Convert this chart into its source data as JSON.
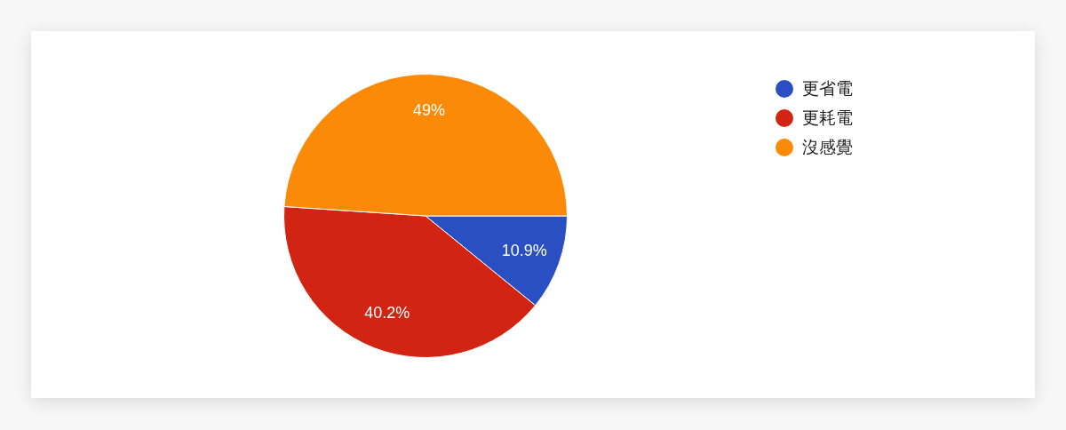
{
  "chart_data": {
    "type": "pie",
    "categories": [
      "更省電",
      "更耗電",
      "沒感覺"
    ],
    "values": [
      10.9,
      40.2,
      49
    ],
    "colors": [
      "#2a4fc2",
      "#d12413",
      "#fb8a09"
    ],
    "value_labels": [
      "10.9%",
      "40.2%",
      "49%"
    ],
    "legend": "top right"
  }
}
